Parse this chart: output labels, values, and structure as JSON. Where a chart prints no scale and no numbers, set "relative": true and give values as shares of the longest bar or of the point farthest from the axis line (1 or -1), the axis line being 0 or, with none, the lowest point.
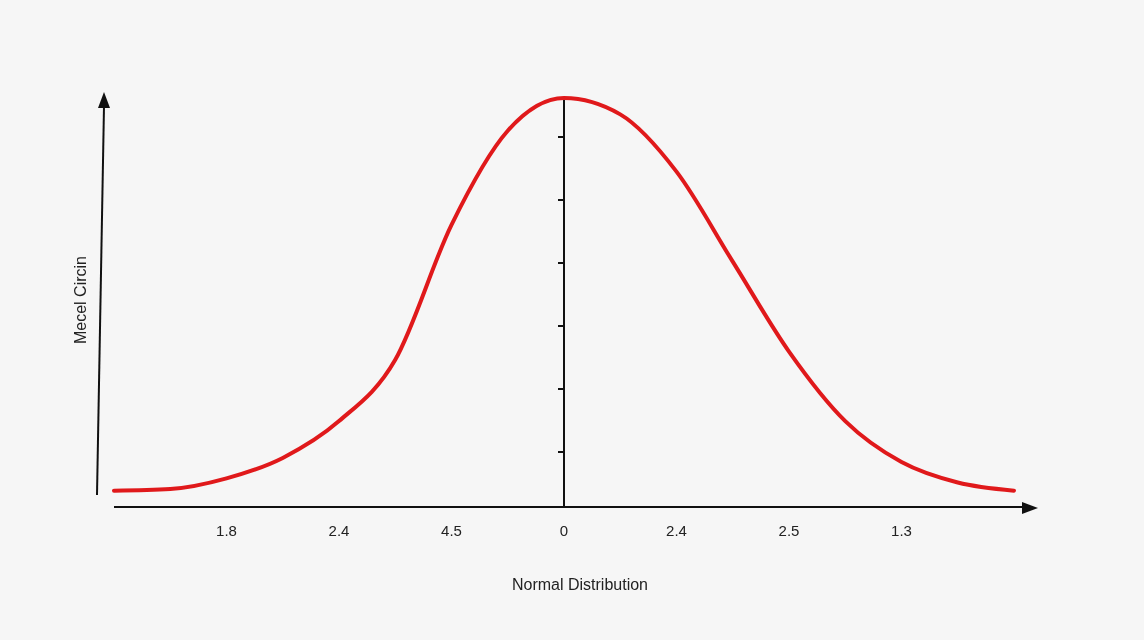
{
  "chart_data": {
    "type": "line",
    "relative": true,
    "xlabel": "Normal Distribution",
    "ylabel": "Mecel Circin",
    "categories": [
      null,
      null,
      "1.8",
      null,
      "2.4",
      null,
      "4.5",
      null,
      "0",
      null,
      "2.4",
      null,
      "2.5",
      null,
      "1.3",
      null,
      null
    ],
    "series": [
      {
        "color": "#e0191b",
        "values": [
          0.04,
          0.044,
          0.07,
          0.12,
          0.21,
          0.36,
          0.69,
          0.92,
          1,
          0.96,
          0.82,
          0.6,
          0.38,
          0.21,
          0.11,
          0.06,
          0.04
        ]
      }
    ],
    "ref_lines": [
      {
        "axis": "x",
        "value": "0"
      }
    ],
    "marker": "none",
    "line_style": "solid"
  }
}
